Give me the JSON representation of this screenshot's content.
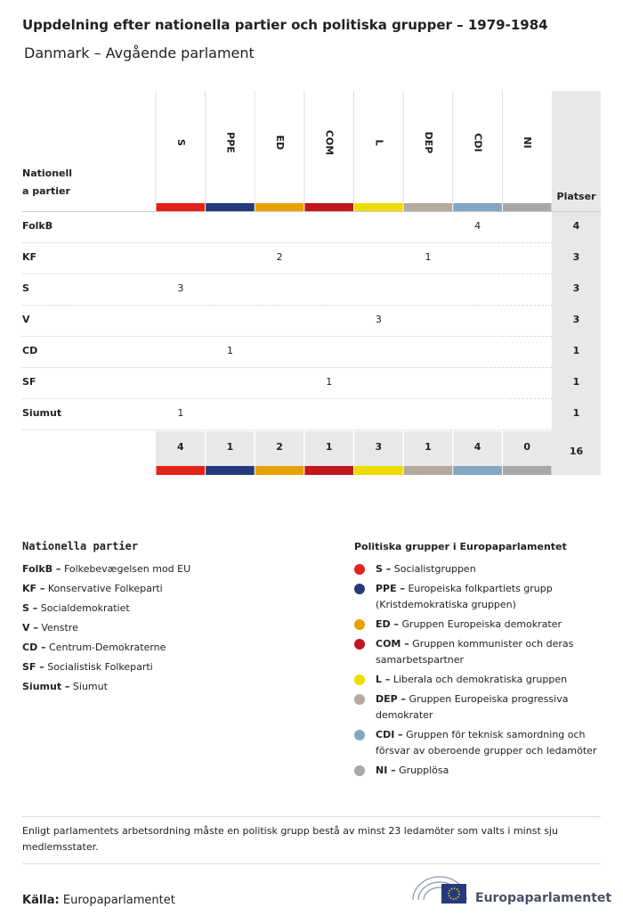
{
  "title": "Uppdelning efter nationella partier och politiska grupper – 1979-1984",
  "subtitle": "Danmark – Avgående parlament",
  "table": {
    "corner_label": [
      "Nationell",
      "a partier"
    ],
    "columns": [
      {
        "label": "S",
        "color": "#e2231a"
      },
      {
        "label": "PPE",
        "color": "#253a7d"
      },
      {
        "label": "ED",
        "color": "#e6a300"
      },
      {
        "label": "COM",
        "color": "#c0171c"
      },
      {
        "label": "L",
        "color": "#eedc00"
      },
      {
        "label": "DEP",
        "color": "#b5aa9e"
      },
      {
        "label": "CDI",
        "color": "#82a7c1"
      },
      {
        "label": "NI",
        "color": "#a8a8a8"
      }
    ],
    "total_header": "Platser",
    "rows": [
      {
        "label": "FolkB",
        "cells": [
          null,
          null,
          null,
          null,
          null,
          null,
          "4",
          null
        ],
        "total": "4"
      },
      {
        "label": "KF",
        "cells": [
          null,
          null,
          "2",
          null,
          null,
          "1",
          null,
          null
        ],
        "total": "3"
      },
      {
        "label": "S",
        "cells": [
          "3",
          null,
          null,
          null,
          null,
          null,
          null,
          null
        ],
        "total": "3"
      },
      {
        "label": "V",
        "cells": [
          null,
          null,
          null,
          null,
          "3",
          null,
          null,
          null
        ],
        "total": "3"
      },
      {
        "label": "CD",
        "cells": [
          null,
          "1",
          null,
          null,
          null,
          null,
          null,
          null
        ],
        "total": "1"
      },
      {
        "label": "SF",
        "cells": [
          null,
          null,
          null,
          "1",
          null,
          null,
          null,
          null
        ],
        "total": "1"
      },
      {
        "label": "Siumut",
        "cells": [
          "1",
          null,
          null,
          null,
          null,
          null,
          null,
          null
        ],
        "total": "1"
      }
    ],
    "totals": [
      "4",
      "1",
      "2",
      "1",
      "3",
      "1",
      "4",
      "0"
    ],
    "grand_total": "16"
  },
  "legend_national": {
    "title": "Nationella partier",
    "items": [
      {
        "abbr": "FolkB –",
        "name": "Folkebevægelsen mod EU"
      },
      {
        "abbr": "KF –",
        "name": "Konservative Folkeparti"
      },
      {
        "abbr": "S –",
        "name": "Socialdemokratiet"
      },
      {
        "abbr": "V –",
        "name": "Venstre"
      },
      {
        "abbr": "CD –",
        "name": "Centrum-Demokraterne"
      },
      {
        "abbr": "SF –",
        "name": "Socialistisk Folkeparti"
      },
      {
        "abbr": "Siumut –",
        "name": "Siumut"
      }
    ]
  },
  "legend_groups": {
    "title": "Politiska grupper i Europaparlamentet",
    "items": [
      {
        "abbr": "S –",
        "name": "Socialistgruppen"
      },
      {
        "abbr": "PPE –",
        "name": "Europeiska folkpartiets grupp (Kristdemokratiska gruppen)"
      },
      {
        "abbr": "ED –",
        "name": "Gruppen Europeiska demokrater"
      },
      {
        "abbr": "COM –",
        "name": "Gruppen kommunister och deras samarbetspartner"
      },
      {
        "abbr": "L –",
        "name": "Liberala och demokratiska gruppen"
      },
      {
        "abbr": "DEP –",
        "name": "Gruppen Europeiska progressiva demokrater"
      },
      {
        "abbr": "CDI –",
        "name": "Gruppen för teknisk samordning och försvar av oberoende grupper och ledamöter"
      },
      {
        "abbr": "NI –",
        "name": "Grupplösa"
      }
    ]
  },
  "footnote": "Enligt parlamentets arbetsordning måste en politisk grupp bestå av minst 23 ledamöter som valts i minst sju medlemsstater.",
  "source": {
    "label": "Källa:",
    "text": "Europaparlamentet"
  },
  "logo_text": "Europaparlamentet"
}
